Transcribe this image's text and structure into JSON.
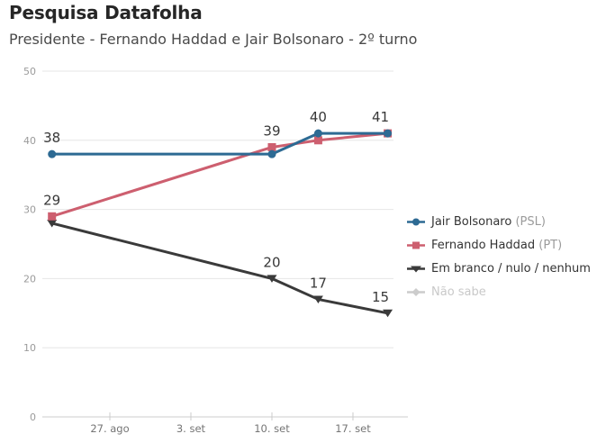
{
  "header": {
    "title": "Pesquisa Datafolha",
    "subtitle": "Presidente - Fernando Haddad e Jair Bolsonaro - 2º turno"
  },
  "chart_data": {
    "type": "line",
    "title": "Pesquisa Datafolha",
    "subtitle": "Presidente - Fernando Haddad e Jair Bolsonaro - 2º turno",
    "xlabel": "",
    "ylabel": "",
    "ylim": [
      0,
      50
    ],
    "y_ticks": [
      0,
      10,
      20,
      30,
      40,
      50
    ],
    "grid": "horizontal",
    "legend_position": "right",
    "x_tick_labels": [
      "27. ago",
      "3. set",
      "10. set",
      "17. set"
    ],
    "x_tick_days": [
      5,
      12,
      19,
      26
    ],
    "x_days": [
      0,
      19,
      23,
      29
    ],
    "series": [
      {
        "name": "Jair Bolsonaro",
        "suffix": "(PSL)",
        "color": "#2d6a93",
        "marker": "circle",
        "visible": true,
        "values": [
          38,
          38,
          41,
          41
        ],
        "labels": [
          "38",
          null,
          null,
          null
        ]
      },
      {
        "name": "Fernando Haddad",
        "suffix": "(PT)",
        "color": "#cd5f6f",
        "marker": "square",
        "visible": true,
        "values": [
          29,
          39,
          40,
          41
        ],
        "labels": [
          "29",
          "39",
          "40",
          "41"
        ]
      },
      {
        "name": "Em branco / nulo / nenhum",
        "suffix": "",
        "color": "#3a3a3a",
        "marker": "triangle-down",
        "visible": true,
        "values": [
          28,
          20,
          17,
          15
        ],
        "labels": [
          null,
          "20",
          "17",
          "15"
        ]
      },
      {
        "name": "Não sabe",
        "suffix": "",
        "color": "#cccccc",
        "marker": "diamond",
        "visible": false,
        "values": null,
        "labels": null
      }
    ],
    "colors": {
      "gridline": "#e6e6e6",
      "zero_line": "#cccccc",
      "tick": "#cccccc"
    }
  }
}
